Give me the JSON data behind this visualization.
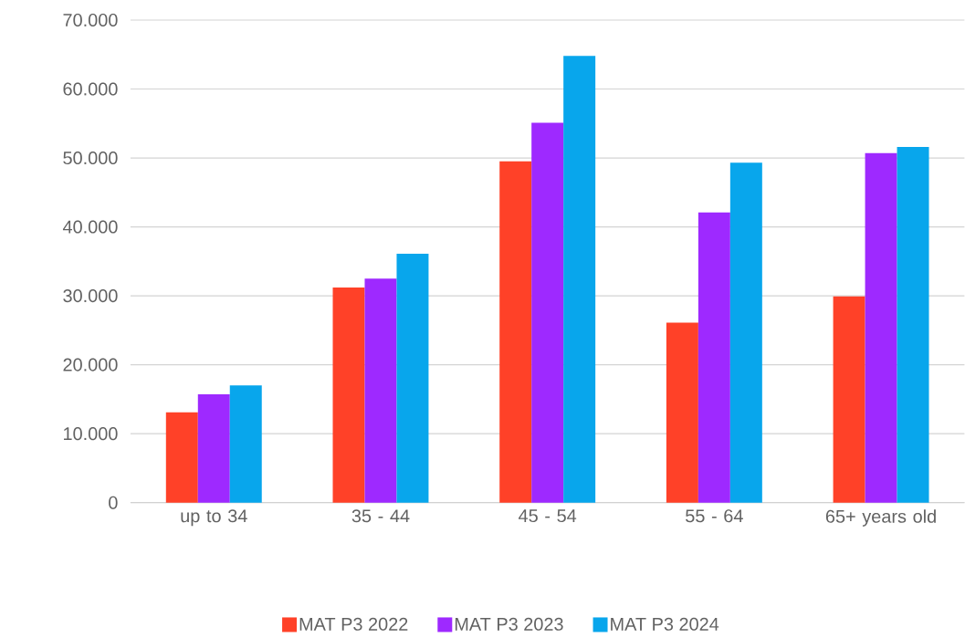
{
  "chart_data": {
    "type": "bar",
    "categories": [
      "up to 34",
      "35 - 44",
      "45 - 54",
      "55 - 64",
      "65+ years old"
    ],
    "series": [
      {
        "name": "MAT P3 2022",
        "color": "#ff4128",
        "values": [
          13100,
          31200,
          49500,
          26100,
          29900
        ]
      },
      {
        "name": "MAT P3 2023",
        "color": "#9e29ff",
        "values": [
          15700,
          32500,
          55100,
          42100,
          50700
        ]
      },
      {
        "name": "MAT P3 2024",
        "color": "#08a6ec",
        "values": [
          17000,
          36100,
          64800,
          49300,
          51600
        ]
      }
    ],
    "ylim": [
      0,
      70000
    ],
    "yticks": [
      0,
      {
        "value": 10000,
        "label": "10.000"
      },
      {
        "value": 20000,
        "label": "20.000"
      },
      {
        "value": 30000,
        "label": "30.000"
      },
      {
        "value": 40000,
        "label": "40.000"
      },
      {
        "value": 50000,
        "label": "50.000"
      },
      {
        "value": 60000,
        "label": "60.000"
      },
      {
        "value": 70000,
        "label": "70.000"
      }
    ],
    "grid": "y",
    "legend": "bottom"
  }
}
